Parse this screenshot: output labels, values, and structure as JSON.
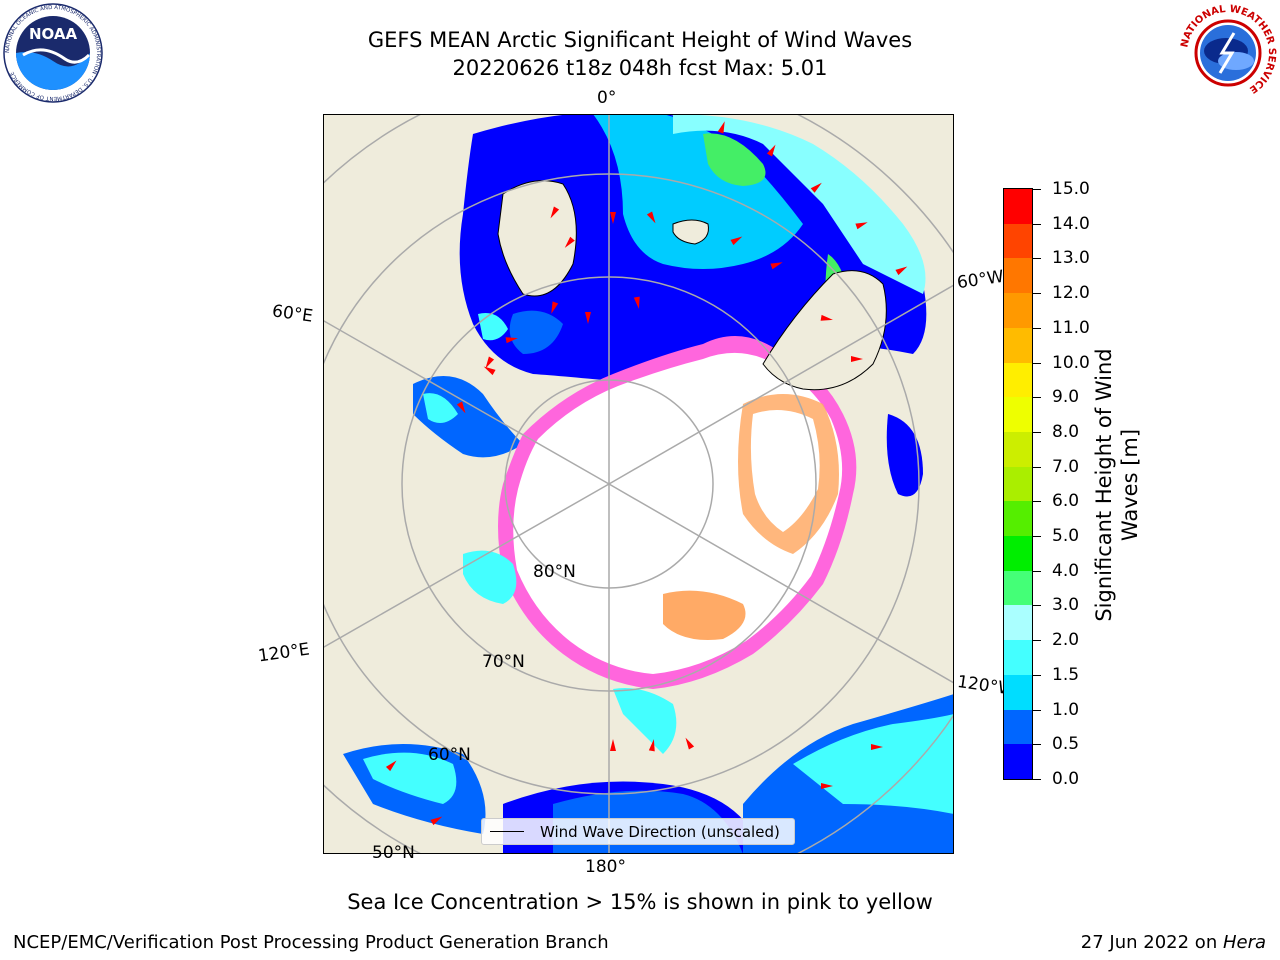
{
  "title": {
    "line1": "GEFS MEAN Arctic Significant Height of Wind Waves",
    "line2": "20220626 t18z 048h fcst   Max: 5.01"
  },
  "logos": {
    "left": "NOAA",
    "left_ring": "NATIONAL OCEANIC AND ATMOSPHERIC ADMINISTRATION · U.S. DEPARTMENT OF COMMERCE",
    "right_ring": "NATIONAL WEATHER SERVICE"
  },
  "map": {
    "projection": "north-polar-stereographic",
    "longitude_labels": [
      "0°",
      "60°E",
      "60°W",
      "120°E",
      "120°W",
      "180°"
    ],
    "latitude_labels": [
      "80°N",
      "70°N",
      "60°N",
      "50°N"
    ],
    "colors": {
      "land": "#efecdc",
      "ice": "#ffffff",
      "ice_edge_pink": "#ff66dd",
      "ice_edge_orange": "#ffaa66",
      "graticule": "#aaaaaa",
      "arrow": "#ff0000"
    }
  },
  "legend": {
    "label": "Wind Wave Direction (unscaled)"
  },
  "colorbar": {
    "title": "Significant Height of Wind Waves [m]",
    "ticks": [
      "0.0",
      "0.5",
      "1.0",
      "1.5",
      "2.0",
      "3.0",
      "4.0",
      "5.0",
      "6.0",
      "7.0",
      "8.0",
      "9.0",
      "10.0",
      "11.0",
      "12.0",
      "13.0",
      "14.0",
      "15.0"
    ],
    "colors": [
      "#0000ff",
      "#0066ff",
      "#00ddff",
      "#44ffff",
      "#aaffff",
      "#44ff77",
      "#00ee00",
      "#55ee00",
      "#aaee00",
      "#ccee00",
      "#eeff00",
      "#ffee00",
      "#ffbb00",
      "#ff9900",
      "#ff7700",
      "#ff4400",
      "#ff0000"
    ]
  },
  "subtitle": "Sea Ice Concentration > 15% is shown in pink to yellow",
  "footer": {
    "left": "NCEP/EMC/Verification Post Processing Product Generation Branch",
    "right_prefix": "27 Jun 2022 on ",
    "right_host": "Hera"
  }
}
